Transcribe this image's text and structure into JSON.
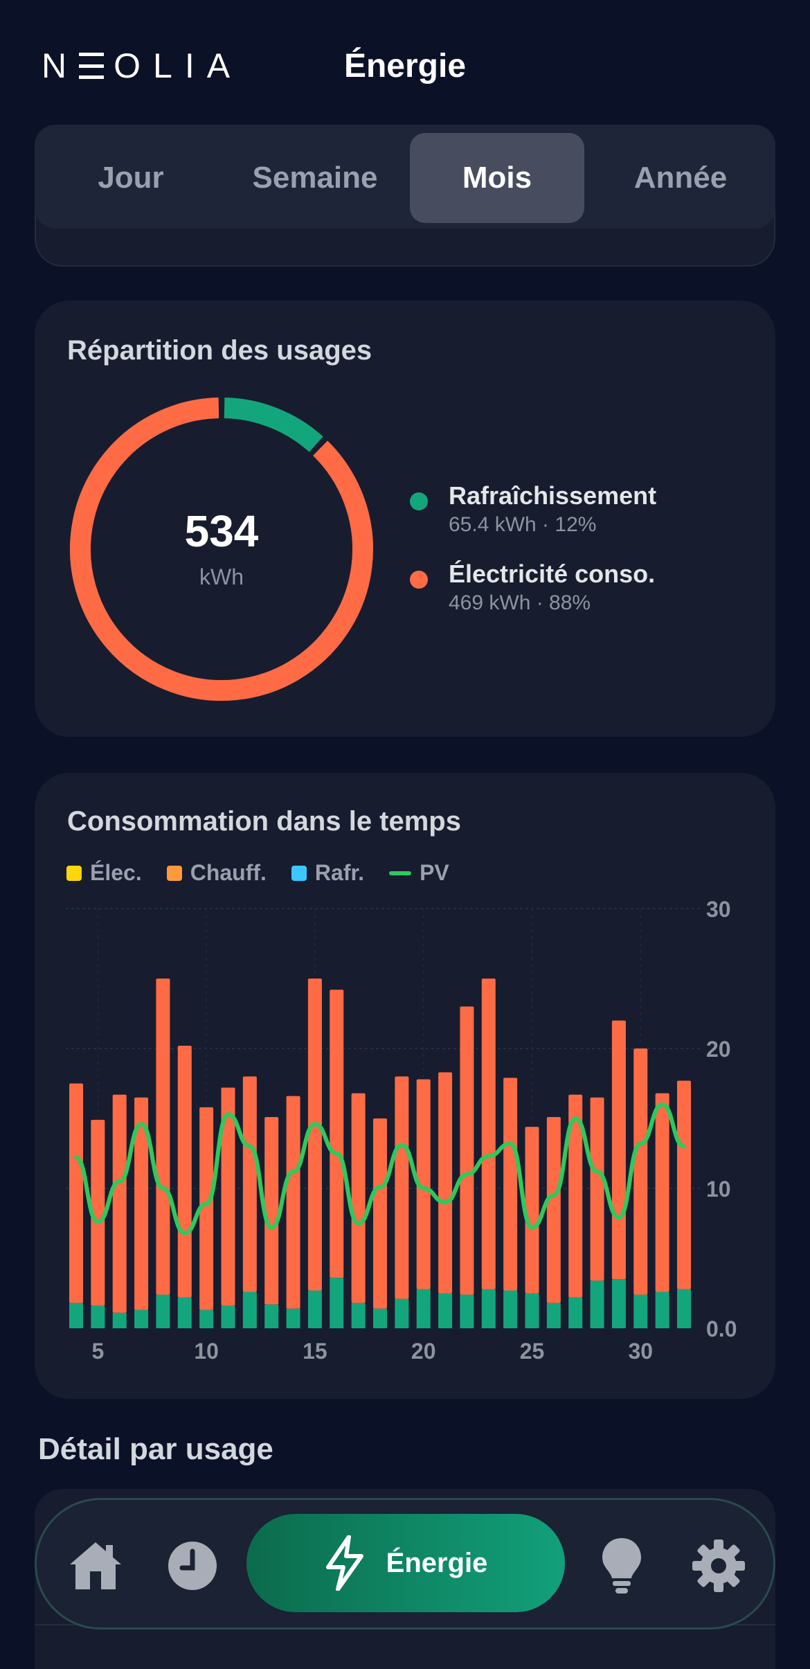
{
  "header": {
    "logo_letters": [
      "N",
      "O",
      "L",
      "I",
      "A"
    ],
    "title": "Énergie"
  },
  "tabs": [
    {
      "label": "Jour",
      "active": false
    },
    {
      "label": "Semaine",
      "active": false
    },
    {
      "label": "Mois",
      "active": true
    },
    {
      "label": "Année",
      "active": false
    }
  ],
  "usage_card": {
    "title": "Répartition des usages",
    "total_value": "534",
    "total_unit": "kWh",
    "segments": [
      {
        "name": "Rafraîchissement",
        "detail": "65.4 kWh · 12%",
        "share": 0.12,
        "color": "#13a67c"
      },
      {
        "name": "Électricité conso.",
        "detail": "469 kWh · 88%",
        "share": 0.88,
        "color": "#ff6b45"
      }
    ]
  },
  "time_card": {
    "title": "Consommation dans le temps",
    "legend": [
      {
        "label": "Élec.",
        "color": "#ffd60a",
        "kind": "square"
      },
      {
        "label": "Chauff.",
        "color": "#ff9a3c",
        "kind": "square"
      },
      {
        "label": "Rafr.",
        "color": "#3cc8ff",
        "kind": "square"
      },
      {
        "label": "PV",
        "color": "#2ec95c",
        "kind": "line"
      }
    ]
  },
  "chart_data": {
    "type": "bar",
    "title": "Consommation dans le temps",
    "x": [
      4,
      5,
      6,
      7,
      8,
      9,
      10,
      11,
      12,
      13,
      14,
      15,
      16,
      17,
      18,
      19,
      20,
      21,
      22,
      23,
      24,
      25,
      26,
      27,
      28,
      29,
      30,
      31,
      32
    ],
    "x_ticks": [
      "5",
      "10",
      "15",
      "20",
      "25",
      "30"
    ],
    "x_tick_values": [
      5,
      10,
      15,
      20,
      25,
      30
    ],
    "y_ticks": [
      "0.0",
      "10",
      "20",
      "30"
    ],
    "y_tick_values": [
      0,
      10,
      20,
      30
    ],
    "ylim": [
      0,
      30
    ],
    "grid": true,
    "series": [
      {
        "name": "Rafr.",
        "kind": "bar",
        "color": "#13a67c",
        "values": [
          1.8,
          1.6,
          1.1,
          1.3,
          2.4,
          2.2,
          1.3,
          1.6,
          2.6,
          1.7,
          1.4,
          2.7,
          3.6,
          1.8,
          1.4,
          2.1,
          2.8,
          2.5,
          2.4,
          2.8,
          2.7,
          2.5,
          1.8,
          2.2,
          3.4,
          3.5,
          2.4,
          2.6,
          2.8
        ]
      },
      {
        "name": "Chauff.",
        "kind": "bar",
        "color": "#ff6b45",
        "values": [
          15.7,
          13.3,
          15.6,
          15.2,
          22.6,
          18.0,
          14.5,
          15.6,
          15.4,
          13.4,
          15.2,
          22.3,
          20.6,
          15.0,
          13.6,
          15.9,
          15.0,
          15.8,
          20.6,
          22.2,
          15.2,
          11.9,
          13.3,
          14.5,
          13.1,
          18.5,
          17.6,
          14.2,
          14.9
        ]
      },
      {
        "name": "PV",
        "kind": "line",
        "color": "#2ec95c",
        "values": [
          12.2,
          7.6,
          10.5,
          14.6,
          10.0,
          6.8,
          8.9,
          15.3,
          13.0,
          7.2,
          11.2,
          14.6,
          12.5,
          7.5,
          10.1,
          13.1,
          10.0,
          9.0,
          11.0,
          12.3,
          13.2,
          7.2,
          9.5,
          15.0,
          11.2,
          7.9,
          13.2,
          16.0,
          13.0
        ]
      }
    ]
  },
  "detail_section": {
    "title": "Détail par usage"
  },
  "navbar": {
    "items": [
      {
        "icon": "home-icon"
      },
      {
        "icon": "clock-icon"
      },
      {
        "icon": "bolt-icon",
        "label": "Énergie",
        "active": true
      },
      {
        "icon": "bulb-icon"
      },
      {
        "icon": "gear-icon"
      }
    ]
  }
}
